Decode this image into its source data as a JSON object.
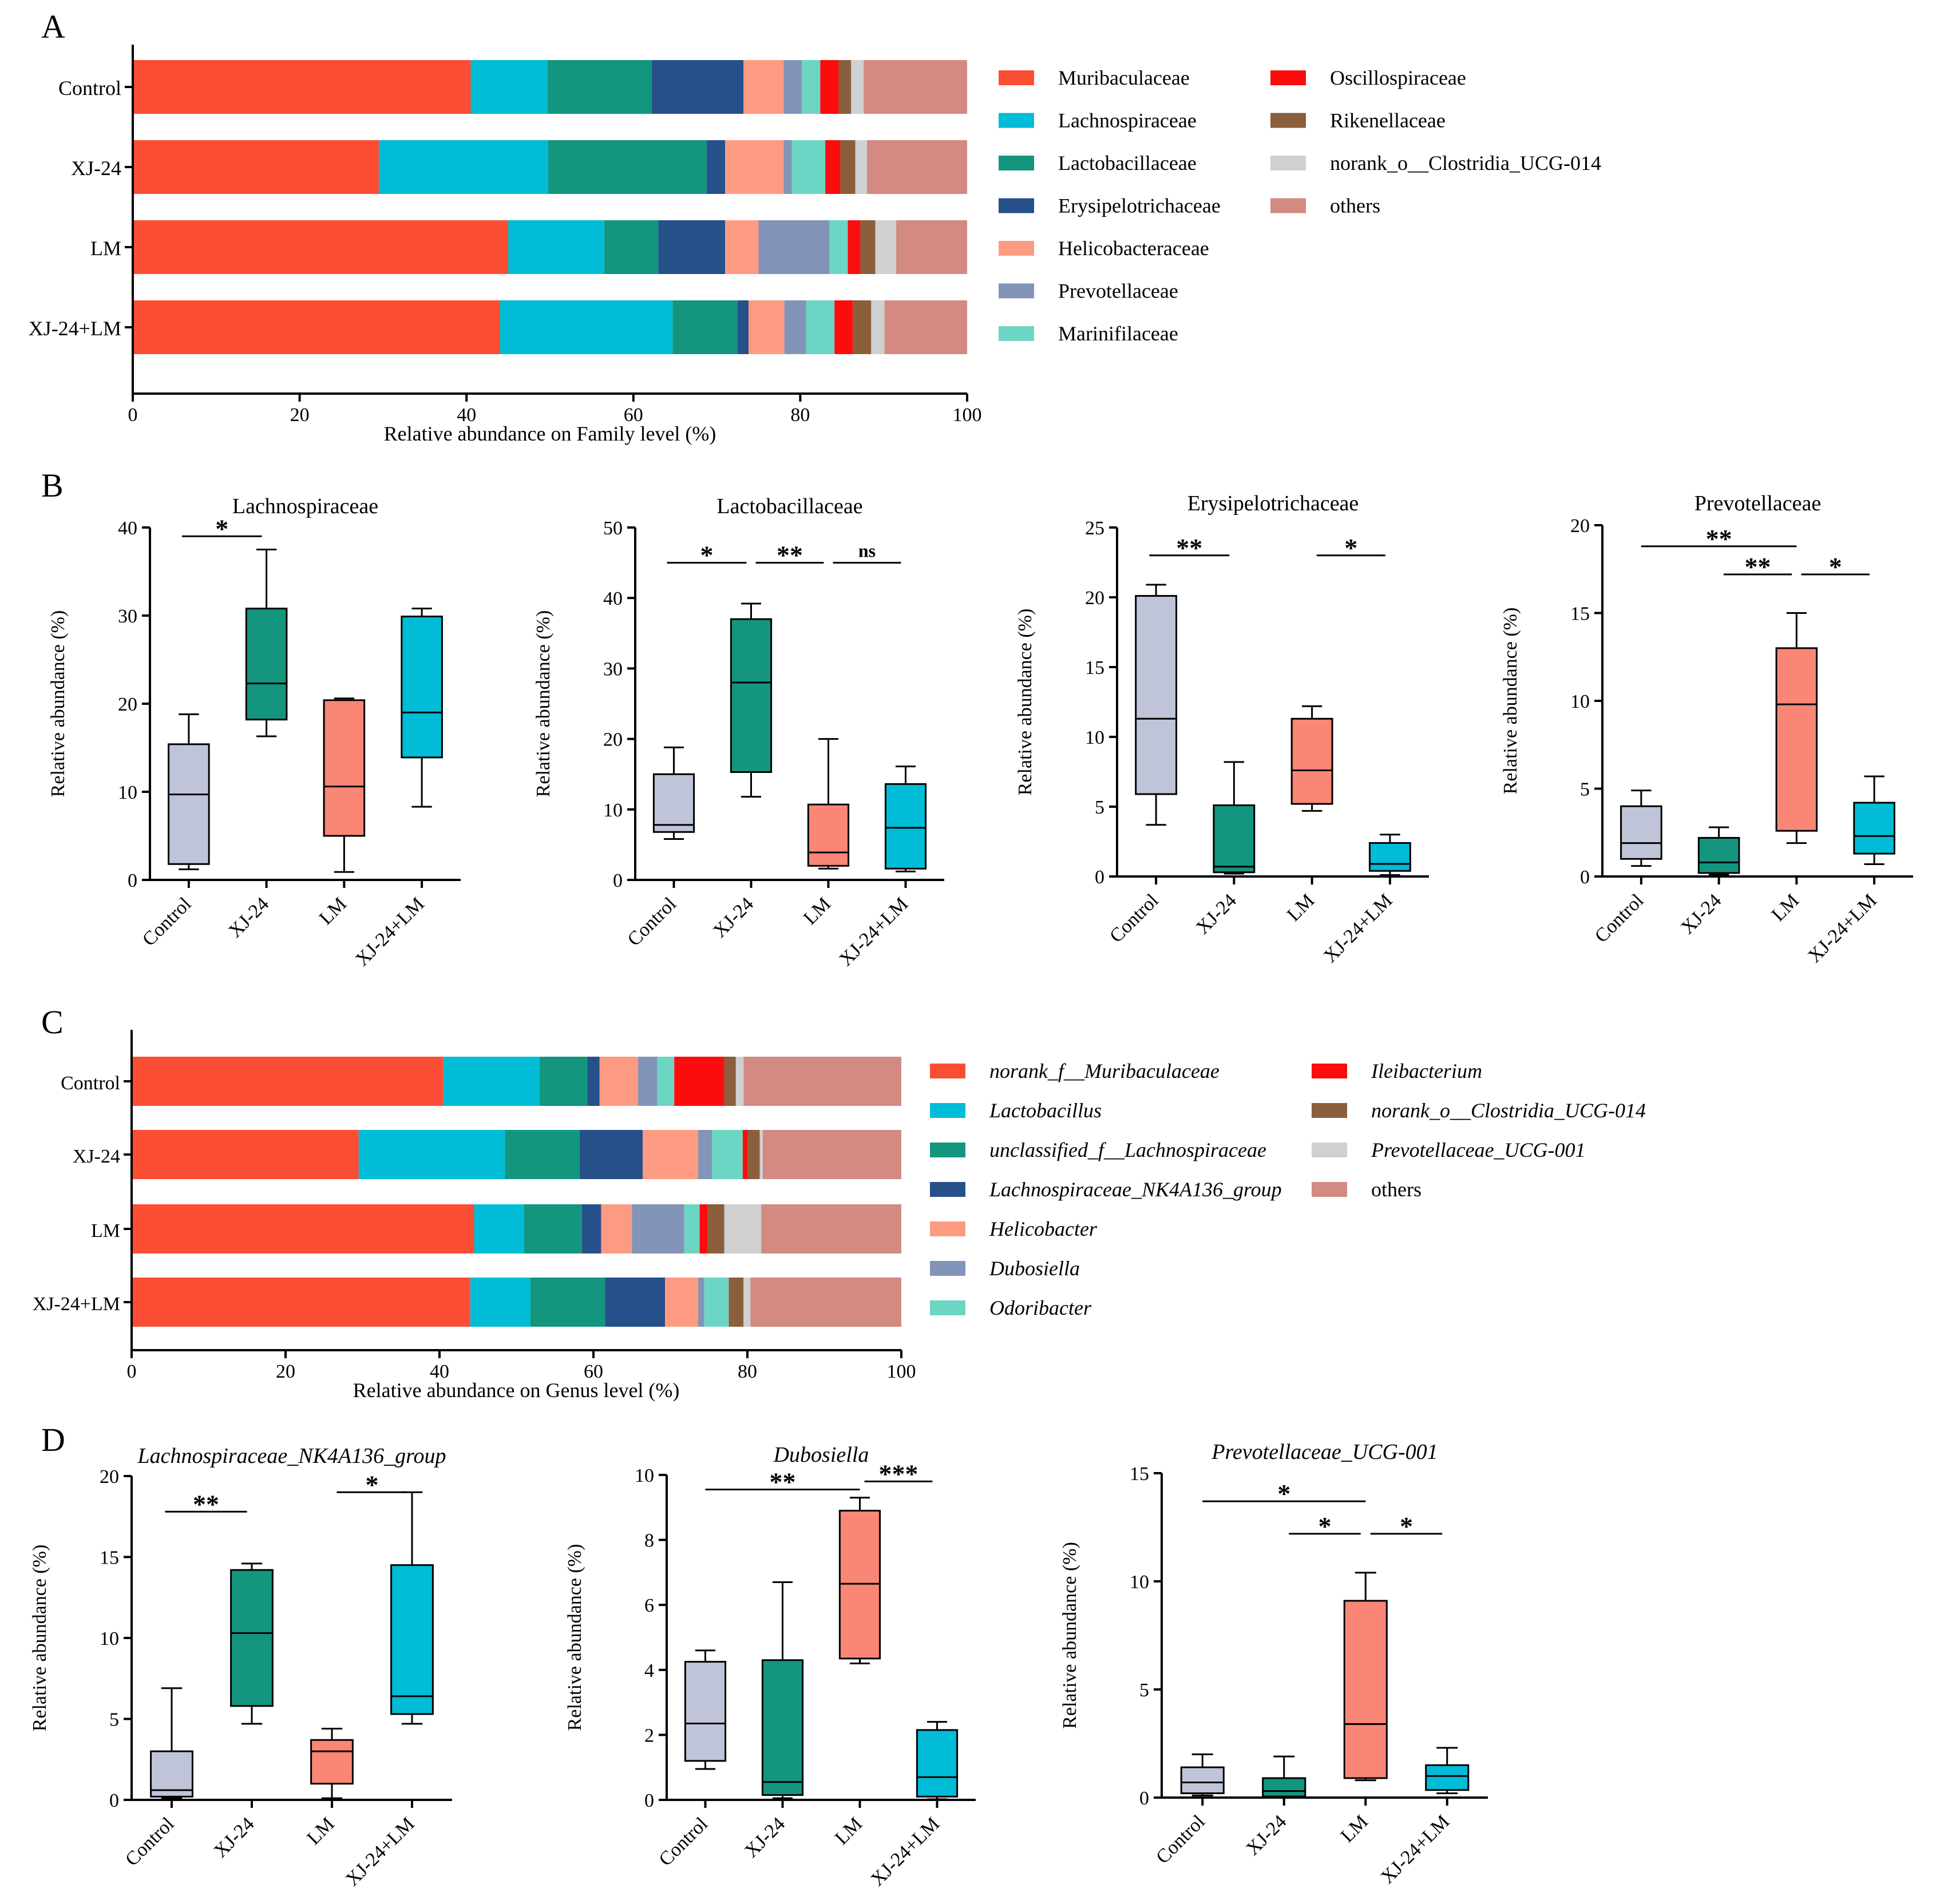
{
  "colors": {
    "box_groups": [
      "#c0c4d8",
      "#13957e",
      "#fa8676",
      "#00bcd6"
    ],
    "stroke": "#000000"
  },
  "chart_data": [
    {
      "id": "A",
      "panel_label": "A",
      "type": "stacked-bar-horizontal",
      "xlabel": "Relative abundance on Family level (%)",
      "xlim": [
        0,
        100
      ],
      "xticks": [
        "0",
        "20",
        "40",
        "60",
        "80",
        "100"
      ],
      "categories": [
        "Control",
        "XJ-24",
        "LM",
        "XJ-24+LM"
      ],
      "legend_italic": false,
      "legend_rows": 7,
      "series": [
        {
          "name": "Muribaculaceae",
          "color": "#fb4d34",
          "values": [
            40.5,
            29.5,
            45.0,
            44.0
          ]
        },
        {
          "name": "Lachnospiraceae",
          "color": "#00bcd6",
          "values": [
            9.2,
            20.3,
            11.5,
            20.7
          ]
        },
        {
          "name": "Lactobacillaceae",
          "color": "#13957e",
          "values": [
            12.5,
            19.0,
            6.5,
            7.8
          ]
        },
        {
          "name": "Erysipelotrichaceae",
          "color": "#26508a",
          "values": [
            11.0,
            2.2,
            8.0,
            1.3
          ]
        },
        {
          "name": "Helicobacteraceae",
          "color": "#fd9b82",
          "values": [
            4.8,
            7.0,
            4.0,
            4.3
          ]
        },
        {
          "name": "Prevotellaceae",
          "color": "#8294b8",
          "values": [
            2.2,
            1.0,
            8.5,
            2.6
          ]
        },
        {
          "name": "Marinifilaceae",
          "color": "#6dd5c3",
          "values": [
            2.2,
            4.0,
            2.2,
            3.4
          ]
        },
        {
          "name": "Oscillospiraceae",
          "color": "#fb0d0d",
          "values": [
            2.2,
            1.8,
            1.5,
            2.2
          ]
        },
        {
          "name": "Rikenellaceae",
          "color": "#8b5e3c",
          "values": [
            1.5,
            1.8,
            1.8,
            2.2
          ]
        },
        {
          "name": "norank_o__Clostridia_UCG-014",
          "color": "#d0d0d0",
          "values": [
            1.5,
            1.4,
            2.5,
            1.6
          ]
        },
        {
          "name": "others",
          "color": "#d28a82",
          "values": [
            12.4,
            12.0,
            8.5,
            9.9
          ]
        }
      ]
    },
    {
      "id": "B1",
      "panel_label": "B",
      "type": "boxplot",
      "title": "Lachnospiraceae",
      "title_italic": false,
      "ylabel": "Relative abundance (%)",
      "ylim": [
        0,
        40
      ],
      "yticks": [
        "0",
        "10",
        "20",
        "30",
        "40"
      ],
      "categories": [
        "Control",
        "XJ-24",
        "LM",
        "XJ-24+LM"
      ],
      "boxes": [
        {
          "min": 1.2,
          "q1": 1.8,
          "median": 9.7,
          "q3": 15.4,
          "max": 18.8
        },
        {
          "min": 16.3,
          "q1": 18.2,
          "median": 22.3,
          "q3": 30.8,
          "max": 37.5
        },
        {
          "min": 0.9,
          "q1": 5.0,
          "median": 10.6,
          "q3": 20.4,
          "max": 20.6
        },
        {
          "min": 8.3,
          "q1": 13.9,
          "median": 19.0,
          "q3": 29.9,
          "max": 30.8
        }
      ],
      "significance": [
        {
          "from": 0,
          "to": 1,
          "label": "*",
          "level": 39.0
        }
      ]
    },
    {
      "id": "B2",
      "type": "boxplot",
      "title": "Lactobacillaceae",
      "title_italic": false,
      "ylabel": "Relative abundance (%)",
      "ylim": [
        0,
        50
      ],
      "yticks": [
        "0",
        "10",
        "20",
        "30",
        "40",
        "50"
      ],
      "categories": [
        "Control",
        "XJ-24",
        "LM",
        "XJ-24+LM"
      ],
      "boxes": [
        {
          "min": 5.8,
          "q1": 6.8,
          "median": 7.8,
          "q3": 15.0,
          "max": 18.8
        },
        {
          "min": 11.8,
          "q1": 15.3,
          "median": 28.0,
          "q3": 37.0,
          "max": 39.2
        },
        {
          "min": 1.6,
          "q1": 2.0,
          "median": 3.9,
          "q3": 10.7,
          "max": 20.0
        },
        {
          "min": 1.2,
          "q1": 1.6,
          "median": 7.4,
          "q3": 13.6,
          "max": 16.1
        }
      ],
      "significance": [
        {
          "from": 0,
          "to": 1,
          "label": "*",
          "level": 45.0
        },
        {
          "from": 1,
          "to": 2,
          "label": "**",
          "level": 45.0
        },
        {
          "from": 2,
          "to": 3,
          "label": "ns",
          "level": 45.0
        }
      ]
    },
    {
      "id": "B3",
      "type": "boxplot",
      "title": "Erysipelotrichaceae",
      "title_italic": false,
      "ylabel": "Relative abundance (%)",
      "ylim": [
        0,
        25
      ],
      "yticks": [
        "0",
        "5",
        "10",
        "15",
        "20",
        "25"
      ],
      "categories": [
        "Control",
        "XJ-24",
        "LM",
        "XJ-24+LM"
      ],
      "boxes": [
        {
          "min": 3.7,
          "q1": 5.9,
          "median": 11.3,
          "q3": 20.1,
          "max": 20.9
        },
        {
          "min": 0.2,
          "q1": 0.3,
          "median": 0.7,
          "q3": 5.1,
          "max": 8.2
        },
        {
          "min": 4.7,
          "q1": 5.2,
          "median": 7.6,
          "q3": 11.3,
          "max": 12.2
        },
        {
          "min": 0.1,
          "q1": 0.4,
          "median": 0.9,
          "q3": 2.4,
          "max": 3.0
        }
      ],
      "significance": [
        {
          "from": 0,
          "to": 1,
          "label": "**",
          "level": 23.0
        },
        {
          "from": 2,
          "to": 3,
          "label": "*",
          "level": 23.0
        }
      ]
    },
    {
      "id": "B4",
      "type": "boxplot",
      "title": "Prevotellaceae",
      "title_italic": false,
      "ylabel": "Relative abundance (%)",
      "ylim": [
        0,
        20
      ],
      "yticks": [
        "0",
        "5",
        "10",
        "15",
        "20"
      ],
      "categories": [
        "Control",
        "XJ-24",
        "LM",
        "XJ-24+LM"
      ],
      "boxes": [
        {
          "min": 0.6,
          "q1": 1.0,
          "median": 1.9,
          "q3": 4.0,
          "max": 4.9
        },
        {
          "min": 0.1,
          "q1": 0.2,
          "median": 0.8,
          "q3": 2.2,
          "max": 2.8
        },
        {
          "min": 1.9,
          "q1": 2.6,
          "median": 9.8,
          "q3": 13.0,
          "max": 15.0
        },
        {
          "min": 0.7,
          "q1": 1.3,
          "median": 2.3,
          "q3": 4.2,
          "max": 5.7
        }
      ],
      "significance": [
        {
          "from": 0,
          "to": 2,
          "label": "**",
          "level": 18.8
        },
        {
          "from": 1,
          "to": 2,
          "label": "**",
          "level": 17.2
        },
        {
          "from": 2,
          "to": 3,
          "label": "*",
          "level": 17.2
        }
      ]
    },
    {
      "id": "C",
      "panel_label": "C",
      "type": "stacked-bar-horizontal",
      "xlabel": "Relative abundance on Genus level (%)",
      "xlim": [
        0,
        100
      ],
      "xticks": [
        "0",
        "20",
        "40",
        "60",
        "80",
        "100"
      ],
      "categories": [
        "Control",
        "XJ-24",
        "LM",
        "XJ-24+LM"
      ],
      "legend_italic": true,
      "legend_rows": 7,
      "series": [
        {
          "name": "norank_f__Muribaculaceae",
          "color": "#fb4d34",
          "values": [
            40.5,
            29.5,
            44.5,
            44.0
          ]
        },
        {
          "name": "Lactobacillus",
          "color": "#00bcd6",
          "values": [
            12.5,
            19.0,
            6.5,
            7.8
          ]
        },
        {
          "name": "unclassified_f__Lachnospiraceae",
          "color": "#13957e",
          "values": [
            6.2,
            9.7,
            7.5,
            9.7
          ]
        },
        {
          "name": "Lachnospiraceae_NK4A136_group",
          "color": "#26508a",
          "values": [
            1.6,
            8.2,
            2.5,
            7.8
          ]
        },
        {
          "name": "Helicobacter",
          "color": "#fd9b82",
          "values": [
            5.0,
            7.2,
            4.0,
            4.3
          ]
        },
        {
          "name": "Dubosiella",
          "color": "#8294b8",
          "values": [
            2.5,
            1.8,
            6.8,
            0.8
          ]
        },
        {
          "name": "Odoribacter",
          "color": "#6dd5c3",
          "values": [
            2.2,
            4.0,
            2.0,
            3.2
          ]
        },
        {
          "name": "Ileibacterium",
          "color": "#fb0d0d",
          "values": [
            6.5,
            0.6,
            1.0,
            0.1
          ]
        },
        {
          "name": "norank_o__Clostridia_UCG-014",
          "color": "#8b5e3c",
          "values": [
            1.5,
            1.6,
            2.2,
            1.8
          ]
        },
        {
          "name": "Prevotellaceae_UCG-001",
          "color": "#d0d0d0",
          "values": [
            1.0,
            0.4,
            4.8,
            0.9
          ]
        },
        {
          "name": "others",
          "color": "#d28a82",
          "values": [
            20.5,
            18.0,
            18.2,
            19.6
          ]
        }
      ]
    },
    {
      "id": "D1",
      "panel_label": "D",
      "type": "boxplot",
      "title": "Lachnospiraceae_NK4A136_group",
      "title_italic": true,
      "ylabel": "Relative abundance (%)",
      "ylim": [
        0,
        20
      ],
      "yticks": [
        "0",
        "5",
        "10",
        "15",
        "20"
      ],
      "categories": [
        "Control",
        "XJ-24",
        "LM",
        "XJ-24+LM"
      ],
      "boxes": [
        {
          "min": 0.1,
          "q1": 0.2,
          "median": 0.6,
          "q3": 3.0,
          "max": 6.9
        },
        {
          "min": 4.7,
          "q1": 5.8,
          "median": 10.3,
          "q3": 14.2,
          "max": 14.6
        },
        {
          "min": 0.1,
          "q1": 1.0,
          "median": 3.0,
          "q3": 3.7,
          "max": 4.4
        },
        {
          "min": 4.7,
          "q1": 5.3,
          "median": 6.4,
          "q3": 14.5,
          "max": 19.0
        }
      ],
      "significance": [
        {
          "from": 0,
          "to": 1,
          "label": "**",
          "level": 17.8
        },
        {
          "from": 2,
          "to": 3,
          "label": "*",
          "level": 19.0
        }
      ]
    },
    {
      "id": "D2",
      "type": "boxplot",
      "title": "Dubosiella",
      "title_italic": true,
      "ylabel": "Relative abundance (%)",
      "ylim": [
        0,
        10
      ],
      "yticks": [
        "0",
        "2",
        "4",
        "6",
        "8",
        "10"
      ],
      "categories": [
        "Control",
        "XJ-24",
        "LM",
        "XJ-24+LM"
      ],
      "boxes": [
        {
          "min": 0.95,
          "q1": 1.2,
          "median": 2.35,
          "q3": 4.25,
          "max": 4.6
        },
        {
          "min": 0.05,
          "q1": 0.15,
          "median": 0.55,
          "q3": 4.3,
          "max": 6.7
        },
        {
          "min": 4.2,
          "q1": 4.35,
          "median": 6.65,
          "q3": 8.9,
          "max": 9.3
        },
        {
          "min": 0.02,
          "q1": 0.1,
          "median": 0.7,
          "q3": 2.15,
          "max": 2.4
        }
      ],
      "significance": [
        {
          "from": 0,
          "to": 2,
          "label": "**",
          "level": 9.55
        },
        {
          "from": 2,
          "to": 3,
          "label": "***",
          "level": 9.8
        }
      ]
    },
    {
      "id": "D3",
      "type": "boxplot",
      "title": "Prevotellaceae_UCG-001",
      "title_italic": true,
      "ylabel": "Relative abundance (%)",
      "ylim": [
        0,
        15
      ],
      "yticks": [
        "0",
        "5",
        "10",
        "15"
      ],
      "categories": [
        "Control",
        "XJ-24",
        "LM",
        "XJ-24+LM"
      ],
      "boxes": [
        {
          "min": 0.1,
          "q1": 0.2,
          "median": 0.7,
          "q3": 1.4,
          "max": 2.0
        },
        {
          "min": 0.0,
          "q1": 0.05,
          "median": 0.3,
          "q3": 0.9,
          "max": 1.9
        },
        {
          "min": 0.8,
          "q1": 0.9,
          "median": 3.4,
          "q3": 9.1,
          "max": 10.4
        },
        {
          "min": 0.2,
          "q1": 0.35,
          "median": 1.0,
          "q3": 1.5,
          "max": 2.3
        }
      ],
      "significance": [
        {
          "from": 0,
          "to": 2,
          "label": "*",
          "level": 13.7
        },
        {
          "from": 1,
          "to": 2,
          "label": "*",
          "level": 12.2
        },
        {
          "from": 2,
          "to": 3,
          "label": "*",
          "level": 12.2
        }
      ]
    }
  ]
}
